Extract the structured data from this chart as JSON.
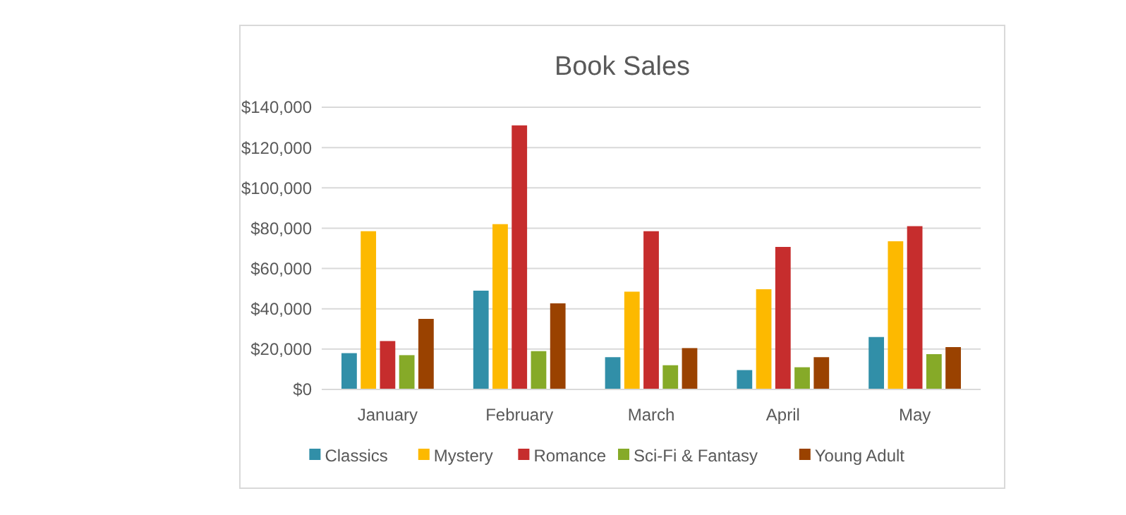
{
  "chart_data": {
    "type": "bar",
    "title": "Book Sales",
    "categories": [
      "January",
      "February",
      "March",
      "April",
      "May"
    ],
    "series": [
      {
        "name": "Classics",
        "color": "#318fa8",
        "values": [
          18000,
          49000,
          16000,
          9600,
          26000
        ]
      },
      {
        "name": "Mystery",
        "color": "#fdb900",
        "values": [
          78500,
          82000,
          48500,
          49700,
          73500
        ]
      },
      {
        "name": "Romance",
        "color": "#c62d2d",
        "values": [
          24000,
          131000,
          78500,
          70700,
          81000
        ]
      },
      {
        "name": "Sci-Fi & Fantasy",
        "color": "#86aa28",
        "values": [
          17000,
          19000,
          12000,
          11000,
          17500
        ]
      },
      {
        "name": "Young Adult",
        "color": "#9a4200",
        "values": [
          35000,
          42700,
          20500,
          16000,
          21000
        ]
      }
    ],
    "ylim": [
      0,
      140000
    ],
    "yticks": [
      {
        "value": 0,
        "label": "$0"
      },
      {
        "value": 20000,
        "label": "$20,000"
      },
      {
        "value": 40000,
        "label": "$40,000"
      },
      {
        "value": 60000,
        "label": "$60,000"
      },
      {
        "value": 80000,
        "label": "$80,000"
      },
      {
        "value": 100000,
        "label": "$100,000"
      },
      {
        "value": 120000,
        "label": "$120,000"
      },
      {
        "value": 140000,
        "label": "$140,000"
      }
    ],
    "grid": "y",
    "legend": "bottom"
  }
}
